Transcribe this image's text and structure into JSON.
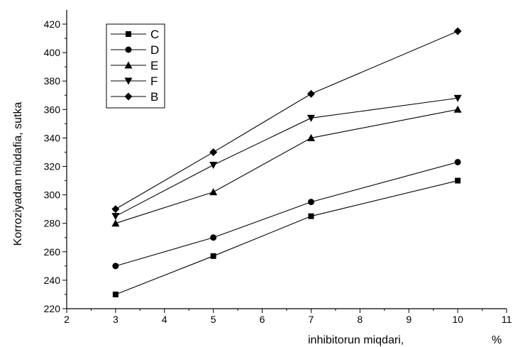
{
  "chart_data": {
    "type": "line",
    "xlabel": "inhibitorun miqdari,",
    "xunit": "%",
    "ylabel": "Korroziyadan müdafia,  sutka",
    "xlim": [
      2,
      11
    ],
    "ylim": [
      220,
      425
    ],
    "xticks": [
      2,
      3,
      4,
      5,
      6,
      7,
      8,
      9,
      10,
      11
    ],
    "yticks": [
      220,
      240,
      260,
      280,
      300,
      320,
      340,
      360,
      380,
      400,
      420
    ],
    "x": [
      3,
      5,
      7,
      10
    ],
    "grid": false,
    "legend_position": "top-left",
    "series": [
      {
        "name": "C",
        "marker": "square",
        "values": [
          230,
          257,
          285,
          310
        ]
      },
      {
        "name": "D",
        "marker": "circle",
        "values": [
          250,
          270,
          295,
          323
        ]
      },
      {
        "name": "E",
        "marker": "triangle-up",
        "values": [
          280,
          302,
          340,
          360
        ]
      },
      {
        "name": "F",
        "marker": "triangle-down",
        "values": [
          285,
          321,
          354,
          368
        ]
      },
      {
        "name": "B",
        "marker": "diamond",
        "values": [
          290,
          330,
          371,
          415
        ]
      }
    ]
  }
}
